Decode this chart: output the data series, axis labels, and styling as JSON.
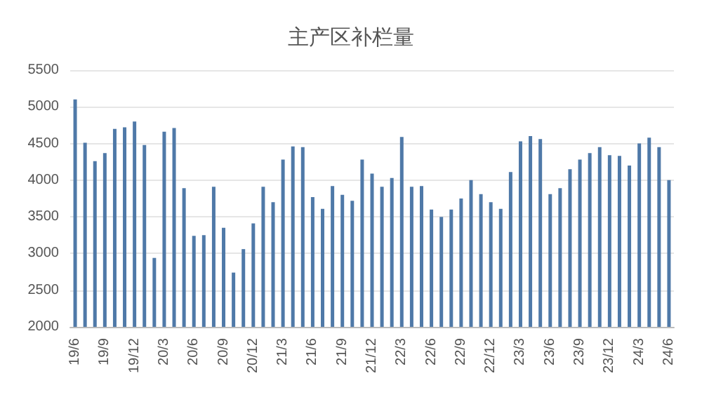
{
  "chart_data": {
    "type": "bar",
    "title": "主产区补栏量",
    "categories": [
      "19/6",
      null,
      null,
      "19/9",
      null,
      null,
      "19/12",
      null,
      null,
      "20/3",
      null,
      null,
      "20/6",
      null,
      null,
      "20/9",
      null,
      null,
      "20/12",
      null,
      null,
      "21/3",
      null,
      null,
      "21/6",
      null,
      null,
      "21/9",
      null,
      null,
      "21/12",
      null,
      null,
      "22/3",
      null,
      null,
      "22/6",
      null,
      null,
      "22/9",
      null,
      null,
      "22/12",
      null,
      null,
      "23/3",
      null,
      null,
      "23/6",
      null,
      null,
      "23/9",
      null,
      null,
      "23/12",
      null,
      null,
      "24/3",
      null,
      null,
      "24/6"
    ],
    "values": [
      5100,
      4510,
      4260,
      4370,
      4700,
      4720,
      4800,
      4480,
      2940,
      4660,
      4710,
      3890,
      3240,
      3250,
      3910,
      3350,
      2740,
      3060,
      3410,
      3910,
      3700,
      4280,
      4460,
      4450,
      3770,
      3610,
      3920,
      3800,
      3720,
      4280,
      4090,
      3910,
      4030,
      4590,
      3910,
      3920,
      3600,
      3500,
      3600,
      3750,
      4000,
      3810,
      3700,
      3610,
      4110,
      4530,
      4600,
      4560,
      3810,
      3890,
      4150,
      4280,
      4370,
      4450,
      4340,
      4330,
      4200,
      4500,
      4580,
      4450,
      4000
    ],
    "color": "#4f79a8",
    "ylim": [
      2000,
      5500
    ],
    "yticks": [
      2000,
      2500,
      3000,
      3500,
      4000,
      4500,
      5000,
      5500
    ],
    "grid": "y"
  }
}
